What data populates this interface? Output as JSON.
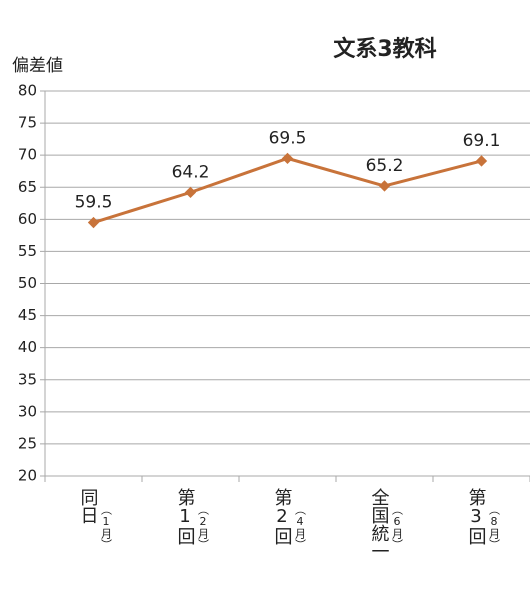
{
  "chart_data": {
    "type": "line",
    "title": "文系3教科",
    "y_label": "偏差値",
    "categories": [
      "同日",
      "第1回",
      "第2回",
      "全国統一",
      "第3回"
    ],
    "category_notes": [
      "（1月）",
      "（2月）",
      "（4月）",
      "（6月）",
      "（8月）"
    ],
    "series": [
      {
        "name": "文系3教科",
        "color": "#c8733a",
        "values": [
          59.5,
          64.2,
          69.5,
          65.2,
          69.1
        ]
      }
    ],
    "ylim": [
      20,
      80
    ],
    "yticks": [
      20,
      25,
      30,
      35,
      40,
      45,
      50,
      55,
      60,
      65,
      70,
      75,
      80
    ],
    "grid": true
  }
}
